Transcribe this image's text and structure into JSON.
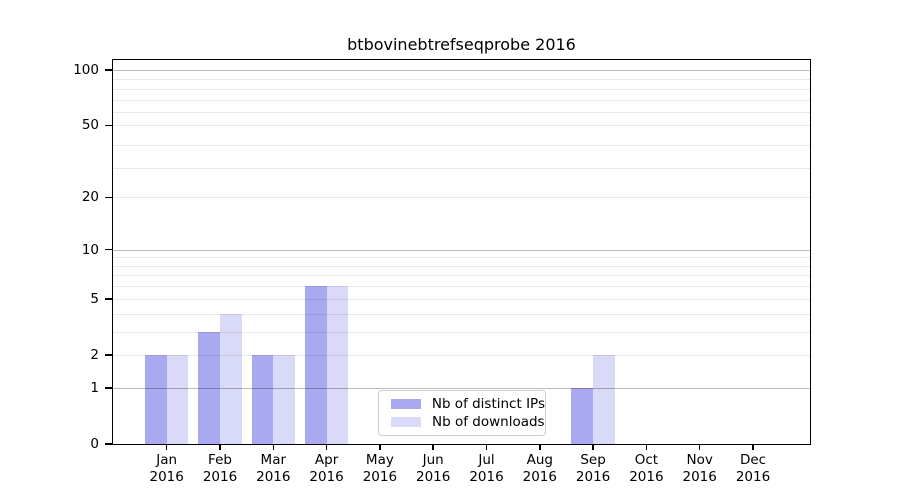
{
  "title": "btbovinebtrefseqprobe 2016",
  "legend": {
    "items": [
      {
        "label": "Nb of distinct IPs",
        "color": "#a9a9f2"
      },
      {
        "label": "Nb of downloads",
        "color": "#d9d9f8"
      }
    ]
  },
  "colors": {
    "bar_distinct_ips": "#a9a9f2",
    "bar_downloads": "#d9d9f8",
    "grid_major": "#b9b9b9",
    "grid_minor": "#e9e9e9",
    "frame": "#000000"
  },
  "chart_data": {
    "type": "bar",
    "title": "btbovinebtrefseqprobe 2016",
    "xlabel": "",
    "ylabel": "",
    "categories": [
      "Jan",
      "Feb",
      "Mar",
      "Apr",
      "May",
      "Jun",
      "Jul",
      "Aug",
      "Sep",
      "Oct",
      "Nov",
      "Dec"
    ],
    "x_year": "2016",
    "series": [
      {
        "name": "Nb of distinct IPs",
        "color": "#a9a9f2",
        "values": [
          2,
          3,
          2,
          6,
          0,
          0,
          0,
          0,
          1,
          0,
          0,
          0
        ]
      },
      {
        "name": "Nb of downloads",
        "color": "#d9d9f8",
        "values": [
          2,
          4,
          2,
          6,
          0,
          0,
          0,
          0,
          2,
          0,
          0,
          0
        ]
      }
    ],
    "y_scale": "log10(1+y)",
    "ylim": [
      0,
      113
    ],
    "y_major_ticks": [
      100,
      50,
      20,
      10,
      5,
      2,
      1,
      0
    ],
    "y_gridlines_dark": [
      1,
      10,
      100
    ],
    "y_gridlines_light": [
      2,
      5,
      20,
      50
    ],
    "y_gridlines_minor": [
      3,
      4,
      6,
      7,
      8,
      9,
      29,
      39,
      59,
      69,
      79,
      89
    ],
    "grid": "on (drawn above bars)",
    "legend_position": "lower center"
  }
}
